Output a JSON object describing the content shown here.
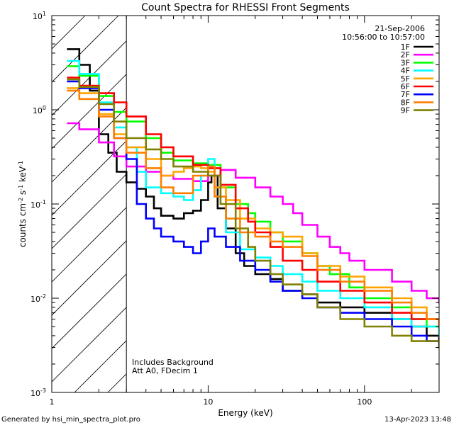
{
  "chart_data": {
    "type": "line",
    "title": "Count Spectra for RHESSI Front Segments",
    "xlabel": "Energy (keV)",
    "ylabel_parts": [
      "counts cm",
      "-2",
      " s",
      "-1",
      " keV",
      "-1"
    ],
    "xscale": "log",
    "yscale": "log",
    "xlim": [
      1,
      300
    ],
    "ylim": [
      0.001,
      10
    ],
    "x_ticks": [
      {
        "value": 1,
        "label": "1"
      },
      {
        "value": 10,
        "label": "10"
      },
      {
        "value": 100,
        "label": "100"
      }
    ],
    "y_ticks": [
      {
        "value": 0.001,
        "base": "10",
        "exp": "-3"
      },
      {
        "value": 0.01,
        "base": "10",
        "exp": "-2"
      },
      {
        "value": 0.1,
        "base": "10",
        "exp": "-1"
      },
      {
        "value": 1,
        "base": "10",
        "exp": "0"
      },
      {
        "value": 10,
        "base": "10",
        "exp": "1"
      }
    ],
    "date": "21-Sep-2006",
    "time_range": "10:56:00 to 10:57:00",
    "annotations": [
      "Includes Background",
      "Att A0, FDecim 1"
    ],
    "hatched_region": [
      1,
      3
    ],
    "legend_position": "top-right",
    "series": [
      {
        "name": "1F",
        "color": "#000000",
        "points": [
          [
            1.25,
            4.4
          ],
          [
            1.5,
            3.0
          ],
          [
            1.75,
            1.6
          ],
          [
            2.0,
            0.55
          ],
          [
            2.3,
            0.35
          ],
          [
            2.6,
            0.22
          ],
          [
            3.0,
            0.17
          ],
          [
            3.5,
            0.145
          ],
          [
            4.0,
            0.12
          ],
          [
            4.5,
            0.09
          ],
          [
            5.0,
            0.075
          ],
          [
            6.0,
            0.07
          ],
          [
            7.0,
            0.08
          ],
          [
            8.0,
            0.085
          ],
          [
            9.0,
            0.11
          ],
          [
            10.0,
            0.17
          ],
          [
            10.5,
            0.2
          ],
          [
            11.5,
            0.09
          ],
          [
            13,
            0.055
          ],
          [
            15,
            0.03
          ],
          [
            17,
            0.022
          ],
          [
            20,
            0.018
          ],
          [
            25,
            0.016
          ],
          [
            30,
            0.012
          ],
          [
            40,
            0.011
          ],
          [
            50,
            0.009
          ],
          [
            70,
            0.008
          ],
          [
            100,
            0.007
          ],
          [
            150,
            0.006
          ],
          [
            200,
            0.005
          ],
          [
            250,
            0.004
          ],
          [
            300,
            0.003
          ]
        ]
      },
      {
        "name": "2F",
        "color": "#ff00ff",
        "points": [
          [
            1.25,
            0.72
          ],
          [
            1.5,
            0.62
          ],
          [
            2.0,
            0.45
          ],
          [
            2.5,
            0.32
          ],
          [
            3.0,
            0.25
          ],
          [
            4.0,
            0.22
          ],
          [
            5.0,
            0.2
          ],
          [
            6.0,
            0.185
          ],
          [
            8.0,
            0.175
          ],
          [
            10.0,
            0.2
          ],
          [
            12,
            0.23
          ],
          [
            15,
            0.19
          ],
          [
            20,
            0.15
          ],
          [
            25,
            0.12
          ],
          [
            30,
            0.1
          ],
          [
            35,
            0.08
          ],
          [
            40,
            0.06
          ],
          [
            50,
            0.045
          ],
          [
            60,
            0.035
          ],
          [
            70,
            0.03
          ],
          [
            80,
            0.025
          ],
          [
            100,
            0.02
          ],
          [
            150,
            0.015
          ],
          [
            200,
            0.012
          ],
          [
            250,
            0.01
          ],
          [
            300,
            0.009
          ]
        ]
      },
      {
        "name": "3F",
        "color": "#00ff00",
        "points": [
          [
            1.25,
            2.9
          ],
          [
            1.5,
            2.3
          ],
          [
            2.0,
            1.4
          ],
          [
            2.5,
            0.95
          ],
          [
            3.0,
            0.75
          ],
          [
            4.0,
            0.5
          ],
          [
            5.0,
            0.35
          ],
          [
            6.0,
            0.29
          ],
          [
            8.0,
            0.27
          ],
          [
            10.0,
            0.26
          ],
          [
            12,
            0.15
          ],
          [
            15,
            0.1
          ],
          [
            18,
            0.08
          ],
          [
            20,
            0.065
          ],
          [
            25,
            0.05
          ],
          [
            30,
            0.04
          ],
          [
            40,
            0.03
          ],
          [
            50,
            0.022
          ],
          [
            60,
            0.018
          ],
          [
            80,
            0.013
          ],
          [
            100,
            0.01
          ],
          [
            150,
            0.008
          ],
          [
            200,
            0.006
          ],
          [
            250,
            0.005
          ],
          [
            300,
            0.004
          ]
        ]
      },
      {
        "name": "4F",
        "color": "#00ffff",
        "points": [
          [
            1.25,
            3.3
          ],
          [
            1.5,
            2.4
          ],
          [
            2.0,
            1.2
          ],
          [
            2.5,
            0.65
          ],
          [
            3.0,
            0.4
          ],
          [
            3.5,
            0.22
          ],
          [
            4.0,
            0.15
          ],
          [
            5.0,
            0.13
          ],
          [
            6.0,
            0.12
          ],
          [
            7.0,
            0.11
          ],
          [
            8.0,
            0.14
          ],
          [
            9.0,
            0.2
          ],
          [
            10.0,
            0.3
          ],
          [
            11.0,
            0.12
          ],
          [
            13,
            0.05
          ],
          [
            16,
            0.033
          ],
          [
            20,
            0.027
          ],
          [
            25,
            0.022
          ],
          [
            30,
            0.018
          ],
          [
            40,
            0.015
          ],
          [
            50,
            0.012
          ],
          [
            70,
            0.01
          ],
          [
            100,
            0.008
          ],
          [
            150,
            0.006
          ],
          [
            200,
            0.005
          ],
          [
            300,
            0.004
          ]
        ]
      },
      {
        "name": "5F",
        "color": "#ffa500",
        "points": [
          [
            1.25,
            1.7
          ],
          [
            1.5,
            1.5
          ],
          [
            2.0,
            0.9
          ],
          [
            2.5,
            0.55
          ],
          [
            3.0,
            0.4
          ],
          [
            4.0,
            0.3
          ],
          [
            5.0,
            0.2
          ],
          [
            6.0,
            0.22
          ],
          [
            7.0,
            0.24
          ],
          [
            8.0,
            0.25
          ],
          [
            9.0,
            0.24
          ],
          [
            10.0,
            0.22
          ],
          [
            11.0,
            0.15
          ],
          [
            13,
            0.11
          ],
          [
            16,
            0.07
          ],
          [
            20,
            0.055
          ],
          [
            25,
            0.05
          ],
          [
            30,
            0.045
          ],
          [
            40,
            0.03
          ],
          [
            50,
            0.022
          ],
          [
            70,
            0.017
          ],
          [
            100,
            0.013
          ],
          [
            150,
            0.01
          ],
          [
            200,
            0.008
          ],
          [
            250,
            0.006
          ],
          [
            300,
            0.005
          ]
        ]
      },
      {
        "name": "6F",
        "color": "#ff0000",
        "points": [
          [
            1.25,
            2.2
          ],
          [
            1.5,
            1.8
          ],
          [
            2.0,
            1.5
          ],
          [
            2.5,
            1.2
          ],
          [
            3.0,
            0.85
          ],
          [
            4.0,
            0.55
          ],
          [
            5.0,
            0.4
          ],
          [
            6.0,
            0.32
          ],
          [
            8.0,
            0.26
          ],
          [
            10.0,
            0.24
          ],
          [
            12,
            0.16
          ],
          [
            15,
            0.09
          ],
          [
            18,
            0.065
          ],
          [
            20,
            0.05
          ],
          [
            25,
            0.035
          ],
          [
            30,
            0.025
          ],
          [
            40,
            0.02
          ],
          [
            50,
            0.015
          ],
          [
            70,
            0.012
          ],
          [
            100,
            0.009
          ],
          [
            150,
            0.007
          ],
          [
            200,
            0.006
          ],
          [
            300,
            0.005
          ]
        ]
      },
      {
        "name": "7F",
        "color": "#0000ff",
        "points": [
          [
            1.25,
            2.0
          ],
          [
            1.5,
            1.7
          ],
          [
            2.0,
            1.0
          ],
          [
            2.5,
            0.5
          ],
          [
            3.0,
            0.3
          ],
          [
            3.5,
            0.1
          ],
          [
            4.0,
            0.07
          ],
          [
            4.5,
            0.055
          ],
          [
            5.0,
            0.045
          ],
          [
            6.0,
            0.04
          ],
          [
            7.0,
            0.035
          ],
          [
            8.0,
            0.03
          ],
          [
            9.0,
            0.04
          ],
          [
            10.0,
            0.055
          ],
          [
            11.0,
            0.045
          ],
          [
            13,
            0.035
          ],
          [
            16,
            0.025
          ],
          [
            20,
            0.02
          ],
          [
            25,
            0.015
          ],
          [
            30,
            0.012
          ],
          [
            40,
            0.01
          ],
          [
            50,
            0.008
          ],
          [
            70,
            0.007
          ],
          [
            100,
            0.006
          ],
          [
            150,
            0.005
          ],
          [
            200,
            0.004
          ],
          [
            250,
            0.0035
          ],
          [
            300,
            0.003
          ]
        ]
      },
      {
        "name": "8F",
        "color": "#ff7f00",
        "points": [
          [
            1.25,
            1.6
          ],
          [
            1.5,
            1.3
          ],
          [
            2.0,
            0.85
          ],
          [
            2.5,
            0.5
          ],
          [
            3.0,
            0.35
          ],
          [
            4.0,
            0.24
          ],
          [
            5.0,
            0.15
          ],
          [
            6.0,
            0.13
          ],
          [
            8.0,
            0.2
          ],
          [
            10.0,
            0.25
          ],
          [
            11.0,
            0.12
          ],
          [
            13,
            0.07
          ],
          [
            16,
            0.05
          ],
          [
            20,
            0.045
          ],
          [
            25,
            0.04
          ],
          [
            30,
            0.035
          ],
          [
            40,
            0.028
          ],
          [
            50,
            0.02
          ],
          [
            70,
            0.015
          ],
          [
            100,
            0.012
          ],
          [
            150,
            0.009
          ],
          [
            200,
            0.007
          ],
          [
            250,
            0.006
          ],
          [
            300,
            0.005
          ]
        ]
      },
      {
        "name": "9F",
        "color": "#808000",
        "points": [
          [
            1.25,
            2.1
          ],
          [
            1.5,
            1.75
          ],
          [
            2.0,
            1.15
          ],
          [
            2.5,
            0.75
          ],
          [
            3.0,
            0.5
          ],
          [
            4.0,
            0.38
          ],
          [
            5.0,
            0.3
          ],
          [
            6.0,
            0.25
          ],
          [
            8.0,
            0.22
          ],
          [
            10.0,
            0.2
          ],
          [
            12,
            0.1
          ],
          [
            15,
            0.055
          ],
          [
            18,
            0.035
          ],
          [
            20,
            0.025
          ],
          [
            25,
            0.018
          ],
          [
            30,
            0.014
          ],
          [
            40,
            0.011
          ],
          [
            50,
            0.008
          ],
          [
            70,
            0.006
          ],
          [
            100,
            0.005
          ],
          [
            150,
            0.004
          ],
          [
            200,
            0.0035
          ],
          [
            300,
            0.003
          ]
        ]
      }
    ]
  },
  "footer": {
    "generated_by": "Generated by hsi_min_spectra_plot.pro",
    "timestamp": "13-Apr-2023 13:48"
  }
}
